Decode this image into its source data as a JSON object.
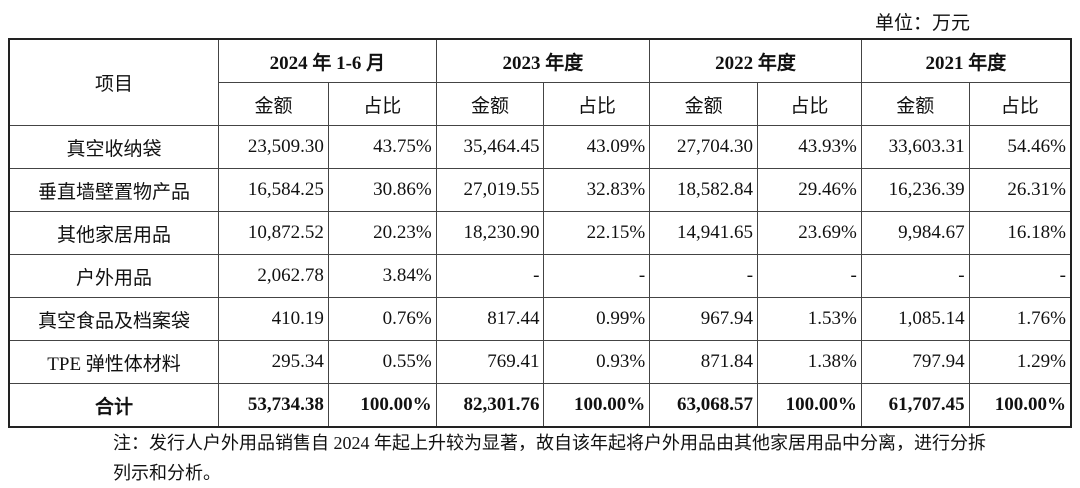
{
  "unit": "单位：万元",
  "table": {
    "item_header": "项目",
    "columns": [
      {
        "period": "2024 年 1-6 月",
        "sub": [
          "金额",
          "占比"
        ]
      },
      {
        "period": "2023 年度",
        "sub": [
          "金额",
          "占比"
        ]
      },
      {
        "period": "2022 年度",
        "sub": [
          "金额",
          "占比"
        ]
      },
      {
        "period": "2021 年度",
        "sub": [
          "金额",
          "占比"
        ]
      }
    ],
    "rows": [
      {
        "label": "真空收纳袋",
        "cells": [
          "23,509.30",
          "43.75%",
          "35,464.45",
          "43.09%",
          "27,704.30",
          "43.93%",
          "33,603.31",
          "54.46%"
        ]
      },
      {
        "label": "垂直墙壁置物产品",
        "cells": [
          "16,584.25",
          "30.86%",
          "27,019.55",
          "32.83%",
          "18,582.84",
          "29.46%",
          "16,236.39",
          "26.31%"
        ]
      },
      {
        "label": "其他家居用品",
        "cells": [
          "10,872.52",
          "20.23%",
          "18,230.90",
          "22.15%",
          "14,941.65",
          "23.69%",
          "9,984.67",
          "16.18%"
        ]
      },
      {
        "label": "户外用品",
        "cells": [
          "2,062.78",
          "3.84%",
          "-",
          "-",
          "-",
          "-",
          "-",
          "-"
        ]
      },
      {
        "label": "真空食品及档案袋",
        "cells": [
          "410.19",
          "0.76%",
          "817.44",
          "0.99%",
          "967.94",
          "1.53%",
          "1,085.14",
          "1.76%"
        ]
      },
      {
        "label": "TPE 弹性体材料",
        "cells": [
          "295.34",
          "0.55%",
          "769.41",
          "0.93%",
          "871.84",
          "1.38%",
          "797.94",
          "1.29%"
        ]
      }
    ],
    "total": {
      "label": "合计",
      "cells": [
        "53,734.38",
        "100.00%",
        "82,301.76",
        "100.00%",
        "63,068.57",
        "100.00%",
        "61,707.45",
        "100.00%"
      ]
    }
  },
  "note": "注：发行人户外用品销售自 2024 年起上升较为显著，故自该年起将户外用品由其他家居用品中分离，进行分拆列示和分析。"
}
